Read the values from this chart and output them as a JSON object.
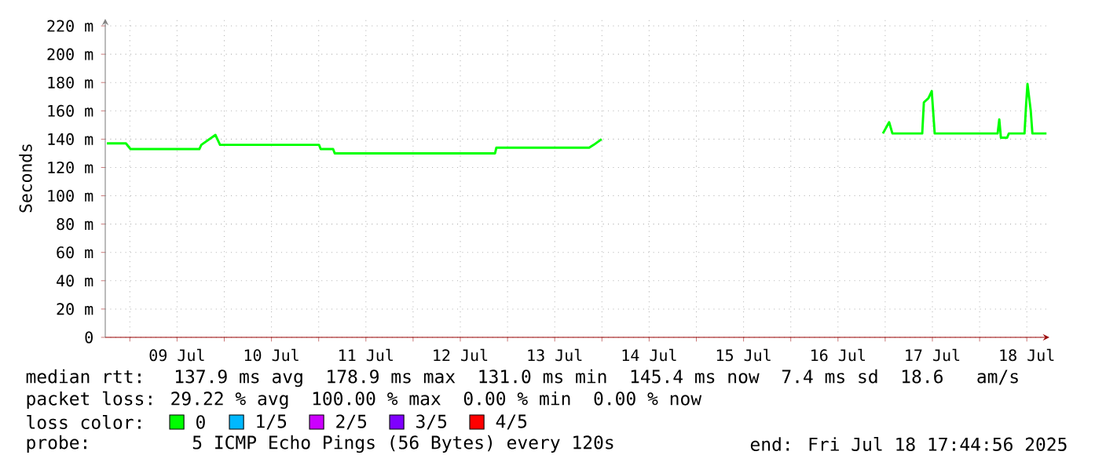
{
  "chart_data": {
    "type": "line",
    "ylabel": "Seconds",
    "legend_title": "loss color:",
    "x": [
      "2025-07-08T18:10",
      "2025-07-08T23:00",
      "2025-07-09T00:10",
      "2025-07-09T17:40",
      "2025-07-09T18:10",
      "2025-07-09T21:45",
      "2025-07-09T22:55",
      "2025-07-11T00:05",
      "2025-07-11T00:30",
      "2025-07-11T03:40",
      "2025-07-11T04:05",
      "2025-07-12T20:50",
      "2025-07-12T21:10",
      "2025-07-13T20:45",
      "2025-07-13T21:55",
      "2025-07-13T23:55",
      "2025-07-15T12:00",
      "2025-07-16T23:25",
      "2025-07-17T01:00",
      "2025-07-17T01:50",
      "2025-07-17T09:25",
      "2025-07-17T09:50",
      "2025-07-17T11:00",
      "2025-07-17T11:50",
      "2025-07-17T12:35",
      "2025-07-18T04:35",
      "2025-07-18T05:00",
      "2025-07-18T05:25",
      "2025-07-18T07:00",
      "2025-07-18T07:25",
      "2025-07-18T11:25",
      "2025-07-18T11:50",
      "2025-07-18T12:10",
      "2025-07-18T13:00",
      "2025-07-18T13:25",
      "2025-07-18T17:00"
    ],
    "series": [
      {
        "name": "0",
        "color": "#00ff00",
        "values": [
          137,
          137,
          133,
          133,
          136,
          143,
          136,
          136,
          133,
          133,
          130,
          130,
          134,
          134,
          136,
          140,
          null,
          144,
          152,
          144,
          144,
          166,
          169,
          174,
          144,
          144,
          154,
          141,
          141,
          144,
          144,
          165,
          179,
          160,
          144,
          144
        ]
      },
      {
        "name": "1/5",
        "color": "#00b8ff",
        "values": [
          null,
          null,
          null,
          null,
          null,
          null,
          null,
          null,
          null,
          null,
          null,
          null,
          null,
          null,
          null,
          null,
          null,
          null,
          null,
          null,
          null,
          null,
          null,
          null,
          null,
          null,
          null,
          null,
          null,
          null,
          null,
          null,
          null,
          null,
          null,
          null
        ]
      },
      {
        "name": "2/5",
        "color": "#cc00ff",
        "values": [
          null,
          null,
          null,
          null,
          null,
          null,
          null,
          null,
          null,
          null,
          null,
          null,
          null,
          null,
          null,
          null,
          null,
          null,
          null,
          null,
          null,
          null,
          null,
          null,
          null,
          null,
          null,
          null,
          null,
          null,
          null,
          null,
          null,
          null,
          null,
          null
        ]
      },
      {
        "name": "3/5",
        "color": "#7f00ff",
        "values": [
          null,
          null,
          null,
          null,
          null,
          null,
          null,
          null,
          null,
          null,
          null,
          null,
          null,
          null,
          null,
          null,
          null,
          null,
          null,
          null,
          null,
          null,
          null,
          null,
          null,
          null,
          null,
          null,
          null,
          null,
          null,
          null,
          null,
          null,
          null,
          null
        ]
      },
      {
        "name": "4/5",
        "color": "#ff0000",
        "values": [
          null,
          null,
          null,
          null,
          null,
          null,
          null,
          null,
          null,
          null,
          null,
          null,
          null,
          null,
          null,
          null,
          null,
          null,
          null,
          null,
          null,
          null,
          null,
          null,
          null,
          null,
          null,
          null,
          null,
          null,
          null,
          null,
          null,
          null,
          null,
          null
        ]
      }
    ],
    "xlim": [
      "2025-07-08T17:45",
      "2025-07-18T17:45"
    ],
    "xticks": [
      {
        "value": "2025-07-09T00:00",
        "label": null
      },
      {
        "value": "2025-07-09T12:00",
        "label": "09 Jul"
      },
      {
        "value": "2025-07-10T00:00",
        "label": null
      },
      {
        "value": "2025-07-10T12:00",
        "label": "10 Jul"
      },
      {
        "value": "2025-07-11T00:00",
        "label": null
      },
      {
        "value": "2025-07-11T12:00",
        "label": "11 Jul"
      },
      {
        "value": "2025-07-12T00:00",
        "label": null
      },
      {
        "value": "2025-07-12T12:00",
        "label": "12 Jul"
      },
      {
        "value": "2025-07-13T00:00",
        "label": null
      },
      {
        "value": "2025-07-13T12:00",
        "label": "13 Jul"
      },
      {
        "value": "2025-07-14T00:00",
        "label": null
      },
      {
        "value": "2025-07-14T12:00",
        "label": "14 Jul"
      },
      {
        "value": "2025-07-15T00:00",
        "label": null
      },
      {
        "value": "2025-07-15T12:00",
        "label": "15 Jul"
      },
      {
        "value": "2025-07-16T00:00",
        "label": null
      },
      {
        "value": "2025-07-16T12:00",
        "label": "16 Jul"
      },
      {
        "value": "2025-07-17T00:00",
        "label": null
      },
      {
        "value": "2025-07-17T12:00",
        "label": "17 Jul"
      },
      {
        "value": "2025-07-18T00:00",
        "label": null
      },
      {
        "value": "2025-07-18T12:00",
        "label": "18 Jul"
      }
    ],
    "ylim": [
      0,
      225
    ],
    "yticks": [
      0,
      {
        "value": 20,
        "label": "20 m"
      },
      {
        "value": 40,
        "label": "40 m"
      },
      {
        "value": 60,
        "label": "60 m"
      },
      {
        "value": 80,
        "label": "80 m"
      },
      {
        "value": 100,
        "label": "100 m"
      },
      {
        "value": 120,
        "label": "120 m"
      },
      {
        "value": 140,
        "label": "140 m"
      },
      {
        "value": 160,
        "label": "160 m"
      },
      {
        "value": 180,
        "label": "180 m"
      },
      {
        "value": 200,
        "label": "200 m"
      },
      {
        "value": 220,
        "label": "220 m"
      }
    ],
    "grid": true,
    "legend": "bottom",
    "marker": "none",
    "line_style": "solid",
    "annotations": [
      "median rtt:  137.9 ms avg  178.9 ms max  131.0 ms min  145.4 ms now  7.4 ms sd  18.6   am/s",
      "packet loss: 29.22 % avg  100.00 % max  0.00 % min  0.00 % now",
      "probe:       5 ICMP Echo Pings (56 Bytes) every 120s",
      "end: Fri Jul 18 17:44:56 2025"
    ]
  }
}
